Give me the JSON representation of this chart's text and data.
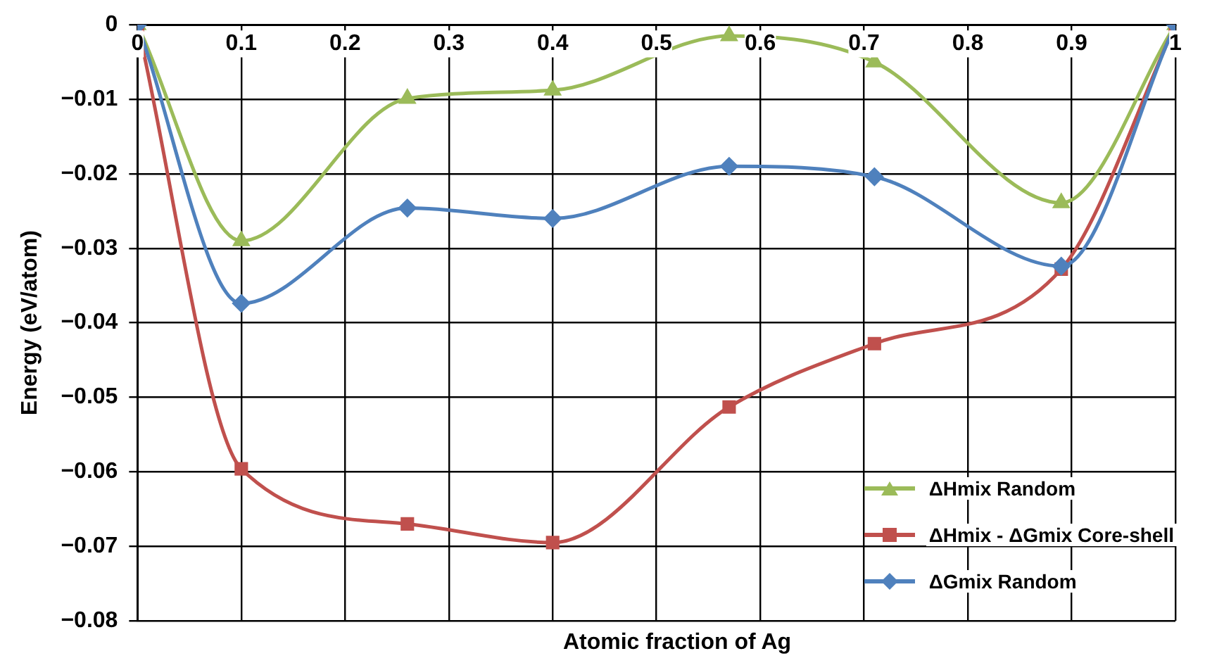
{
  "chart_data": {
    "type": "line",
    "xlabel": "Atomic fraction of Ag",
    "ylabel": "Energy (eV/atom)",
    "x": [
      0,
      0.1,
      0.26,
      0.4,
      0.57,
      0.71,
      0.89,
      1
    ],
    "series": [
      {
        "name": "ΔHmix Random",
        "color": "#9bbb59",
        "marker": "triangle",
        "values": [
          0,
          -0.029,
          -0.0099,
          -0.0088,
          -0.0015,
          -0.005,
          -0.0239,
          0
        ]
      },
      {
        "name": "ΔHmix - ΔGmix Core-shell",
        "color": "#c0504d",
        "marker": "square",
        "values": [
          0,
          -0.0596,
          -0.067,
          -0.0695,
          -0.0513,
          -0.0428,
          -0.0328,
          0
        ]
      },
      {
        "name": "ΔGmix Random",
        "color": "#4f81bd",
        "marker": "diamond",
        "values": [
          0,
          -0.0374,
          -0.0246,
          -0.026,
          -0.019,
          -0.0204,
          -0.0324,
          0
        ]
      }
    ],
    "xlim": [
      0,
      1
    ],
    "xticks": [
      0,
      0.1,
      0.2,
      0.3,
      0.4,
      0.5,
      0.6,
      0.7,
      0.8,
      0.9,
      1
    ],
    "ylim": [
      -0.08,
      0
    ],
    "yticks": [
      {
        "value": -0.08,
        "label": "−0.08"
      },
      {
        "value": -0.07,
        "label": "−0.07"
      },
      {
        "value": -0.06,
        "label": "−0.06"
      },
      {
        "value": -0.05,
        "label": "−0.05"
      },
      {
        "value": -0.04,
        "label": "−0.04"
      },
      {
        "value": -0.03,
        "label": "−0.03"
      },
      {
        "value": -0.02,
        "label": "−0.02"
      },
      {
        "value": -0.01,
        "label": "−0.01"
      },
      0
    ],
    "grid": true,
    "legend": "bottom right",
    "line_style": "solid"
  }
}
